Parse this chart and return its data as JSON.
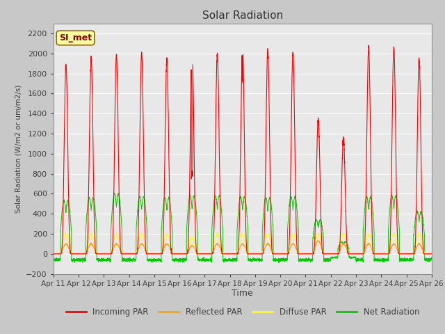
{
  "title": "Solar Radiation",
  "ylabel": "Solar Radiation (W/m2 or um/m2/s)",
  "xlabel": "Time",
  "ylim": [
    -200,
    2300
  ],
  "yticks": [
    -200,
    0,
    200,
    400,
    600,
    800,
    1000,
    1200,
    1400,
    1600,
    1800,
    2000,
    2200
  ],
  "annotation": "SI_met",
  "annotation_color": "#8B0000",
  "annotation_bg": "#FFFFA0",
  "annotation_border": "#8B6914",
  "fig_bg": "#C8C8C8",
  "plot_bg": "#E8E8E8",
  "grid_color": "#FFFFFF",
  "colors": {
    "incoming": "#FF0000",
    "reflected": "#FFA500",
    "diffuse": "#FFFF00",
    "net": "#00CC00"
  },
  "legend_labels": [
    "Incoming PAR",
    "Reflected PAR",
    "Diffuse PAR",
    "Net Radiation"
  ],
  "x_tick_labels": [
    "Apr 11",
    "Apr 12",
    "Apr 13",
    "Apr 14",
    "Apr 15",
    "Apr 16",
    "Apr 17",
    "Apr 18",
    "Apr 19",
    "Apr 20",
    "Apr 21",
    "Apr 22",
    "Apr 23",
    "Apr 24",
    "Apr 25",
    "Apr 26"
  ],
  "incoming_peaks": [
    1900,
    1950,
    1980,
    2000,
    1960,
    2050,
    2000,
    2060,
    2030,
    2010,
    1350,
    1150,
    2060,
    2060,
    1950
  ],
  "reflected_peaks": [
    100,
    100,
    100,
    100,
    100,
    80,
    100,
    100,
    100,
    100,
    130,
    100,
    100,
    100,
    100
  ],
  "diffuse_peaks": [
    200,
    200,
    200,
    200,
    200,
    160,
    200,
    200,
    200,
    200,
    200,
    200,
    200,
    200,
    200
  ],
  "net_peaks": [
    530,
    560,
    600,
    570,
    560,
    580,
    580,
    570,
    560,
    570,
    340,
    200,
    570,
    580,
    420
  ],
  "n_days": 15,
  "ppd": 288,
  "day_start": 0.28,
  "day_end": 0.72,
  "peak_sharpness": 4.0,
  "net_night": -60
}
